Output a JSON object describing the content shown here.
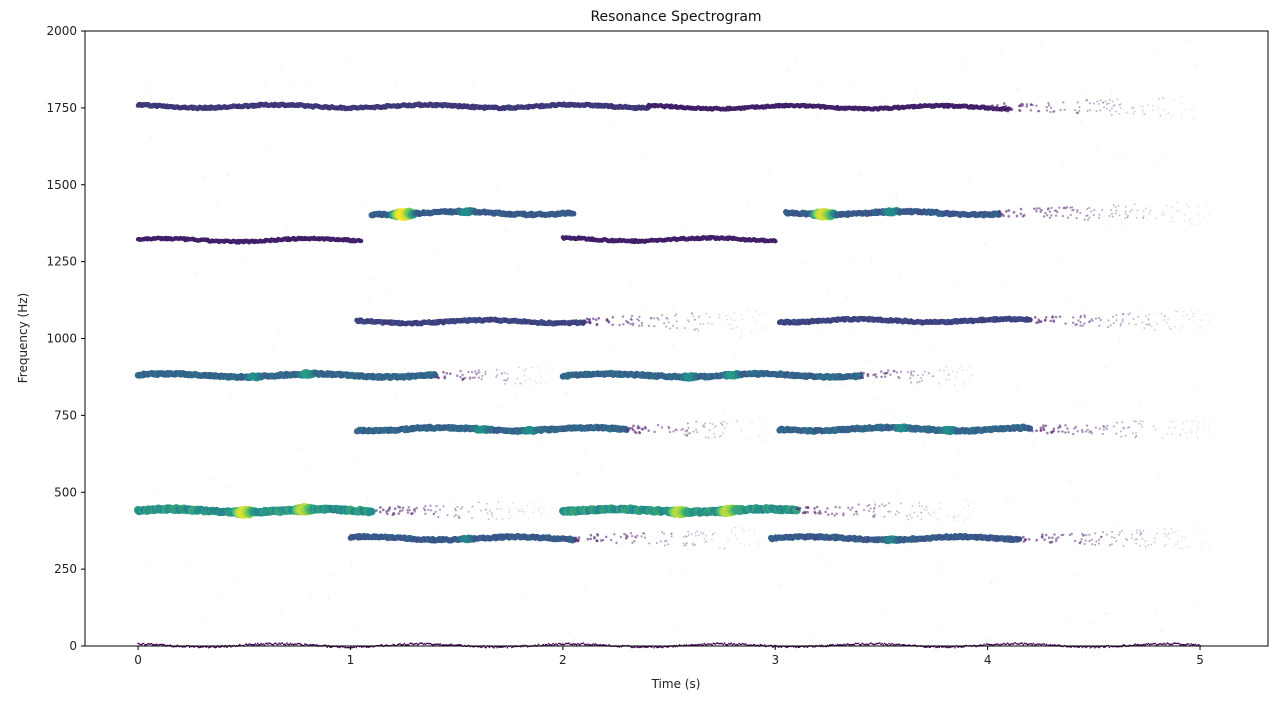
{
  "chart_data": {
    "type": "scatter",
    "title": "Resonance Spectrogram",
    "xlabel": "Time (s)",
    "ylabel": "Frequency (Hz)",
    "xlim": [
      -0.25,
      5.32
    ],
    "ylim": [
      0,
      2000
    ],
    "xticks": [
      0,
      1,
      2,
      3,
      4,
      5
    ],
    "yticks": [
      0,
      250,
      500,
      750,
      1000,
      1250,
      1500,
      1750,
      2000
    ],
    "grid": false,
    "legend": "none",
    "colormap": [
      "#440154",
      "#3b528b",
      "#21918c",
      "#5ec962",
      "#fde725"
    ],
    "segments": [
      {
        "t": [
          0.0,
          2.4
        ],
        "f": 1755,
        "amp": 0.18,
        "hot": []
      },
      {
        "t": [
          2.4,
          4.1
        ],
        "f": 1752,
        "amp": 0.1,
        "hot": [],
        "fade": [
          4.0,
          5.0
        ]
      },
      {
        "t": [
          0.0,
          1.05
        ],
        "f": 1320,
        "amp": 0.1,
        "hot": []
      },
      {
        "t": [
          1.1,
          2.05
        ],
        "f": 1408,
        "amp": 0.3,
        "hot": [
          [
            1.25,
            1.0
          ],
          [
            1.55,
            0.5
          ]
        ]
      },
      {
        "t": [
          2.0,
          3.0
        ],
        "f": 1322,
        "amp": 0.1,
        "hot": []
      },
      {
        "t": [
          3.05,
          4.05
        ],
        "f": 1408,
        "amp": 0.3,
        "hot": [
          [
            3.23,
            0.95
          ],
          [
            3.55,
            0.5
          ]
        ],
        "fade": [
          4.05,
          5.05
        ]
      },
      {
        "t": [
          1.03,
          2.1
        ],
        "f": 1055,
        "amp": 0.22,
        "hot": [],
        "fade": [
          2.1,
          2.95
        ]
      },
      {
        "t": [
          3.02,
          4.2
        ],
        "f": 1058,
        "amp": 0.22,
        "hot": [],
        "fade": [
          4.2,
          5.05
        ]
      },
      {
        "t": [
          0.0,
          1.4
        ],
        "f": 880,
        "amp": 0.35,
        "hot": [
          [
            0.55,
            0.5
          ],
          [
            0.8,
            0.55
          ]
        ],
        "fade": [
          1.4,
          1.95
        ]
      },
      {
        "t": [
          2.0,
          3.4
        ],
        "f": 880,
        "amp": 0.35,
        "hot": [
          [
            2.6,
            0.5
          ],
          [
            2.8,
            0.55
          ]
        ],
        "fade": [
          3.4,
          3.95
        ]
      },
      {
        "t": [
          1.03,
          2.3
        ],
        "f": 705,
        "amp": 0.35,
        "hot": [
          [
            1.62,
            0.5
          ],
          [
            1.85,
            0.5
          ]
        ],
        "fade": [
          2.3,
          2.95
        ]
      },
      {
        "t": [
          3.02,
          4.2
        ],
        "f": 705,
        "amp": 0.35,
        "hot": [
          [
            3.6,
            0.5
          ],
          [
            3.82,
            0.5
          ]
        ],
        "fade": [
          4.2,
          5.05
        ]
      },
      {
        "t": [
          0.0,
          1.1
        ],
        "f": 440,
        "amp": 0.55,
        "hot": [
          [
            0.5,
            0.95
          ],
          [
            0.78,
            0.9
          ]
        ],
        "fade": [
          1.1,
          1.95
        ]
      },
      {
        "t": [
          2.0,
          3.1
        ],
        "f": 440,
        "amp": 0.55,
        "hot": [
          [
            2.55,
            0.9
          ],
          [
            2.78,
            0.9
          ]
        ],
        "fade": [
          3.1,
          3.95
        ]
      },
      {
        "t": [
          1.0,
          2.05
        ],
        "f": 350,
        "amp": 0.3,
        "hot": [
          [
            1.55,
            0.45
          ]
        ],
        "fade": [
          2.05,
          2.95
        ]
      },
      {
        "t": [
          2.98,
          4.15
        ],
        "f": 350,
        "amp": 0.3,
        "hot": [
          [
            3.55,
            0.45
          ]
        ],
        "fade": [
          4.15,
          5.05
        ]
      },
      {
        "t": [
          0.0,
          5.0
        ],
        "f": 2,
        "amp": 0.02,
        "hot": []
      }
    ]
  }
}
